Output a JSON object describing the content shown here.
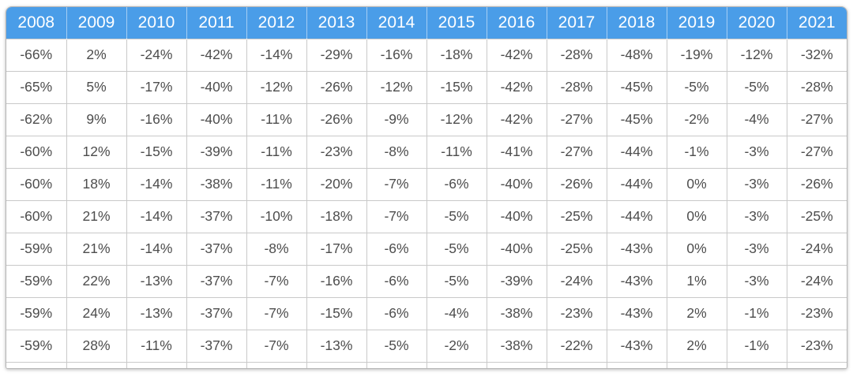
{
  "chart_data": {
    "type": "table",
    "categories": [
      "2008",
      "2009",
      "2010",
      "2011",
      "2012",
      "2013",
      "2014",
      "2015",
      "2016",
      "2017",
      "2018",
      "2019",
      "2020",
      "2021"
    ],
    "rows": [
      [
        "-66%",
        "2%",
        "-24%",
        "-42%",
        "-14%",
        "-29%",
        "-16%",
        "-18%",
        "-42%",
        "-28%",
        "-48%",
        "-19%",
        "-12%",
        "-32%"
      ],
      [
        "-65%",
        "5%",
        "-17%",
        "-40%",
        "-12%",
        "-26%",
        "-12%",
        "-15%",
        "-42%",
        "-28%",
        "-45%",
        "-5%",
        "-5%",
        "-28%"
      ],
      [
        "-62%",
        "9%",
        "-16%",
        "-40%",
        "-11%",
        "-26%",
        "-9%",
        "-12%",
        "-42%",
        "-27%",
        "-45%",
        "-2%",
        "-4%",
        "-27%"
      ],
      [
        "-60%",
        "12%",
        "-15%",
        "-39%",
        "-11%",
        "-23%",
        "-8%",
        "-11%",
        "-41%",
        "-27%",
        "-44%",
        "-1%",
        "-3%",
        "-27%"
      ],
      [
        "-60%",
        "18%",
        "-14%",
        "-38%",
        "-11%",
        "-20%",
        "-7%",
        "-6%",
        "-40%",
        "-26%",
        "-44%",
        "0%",
        "-3%",
        "-26%"
      ],
      [
        "-60%",
        "21%",
        "-14%",
        "-37%",
        "-10%",
        "-18%",
        "-7%",
        "-5%",
        "-40%",
        "-25%",
        "-44%",
        "0%",
        "-3%",
        "-25%"
      ],
      [
        "-59%",
        "21%",
        "-14%",
        "-37%",
        "-8%",
        "-17%",
        "-6%",
        "-5%",
        "-40%",
        "-25%",
        "-43%",
        "0%",
        "-3%",
        "-24%"
      ],
      [
        "-59%",
        "22%",
        "-13%",
        "-37%",
        "-7%",
        "-16%",
        "-6%",
        "-5%",
        "-39%",
        "-24%",
        "-43%",
        "1%",
        "-3%",
        "-24%"
      ],
      [
        "-59%",
        "24%",
        "-13%",
        "-37%",
        "-7%",
        "-15%",
        "-6%",
        "-4%",
        "-38%",
        "-23%",
        "-43%",
        "2%",
        "-1%",
        "-23%"
      ],
      [
        "-59%",
        "28%",
        "-11%",
        "-37%",
        "-7%",
        "-13%",
        "-5%",
        "-2%",
        "-38%",
        "-22%",
        "-43%",
        "2%",
        "-1%",
        "-23%"
      ]
    ],
    "layout": {
      "header_position": "top",
      "grid": true,
      "cell_alignment": "center"
    }
  },
  "colors": {
    "header_bg": "#4a9de8",
    "header_text": "#ffffff",
    "cell_text": "#4d4d4d",
    "border": "#c9c9c9"
  }
}
